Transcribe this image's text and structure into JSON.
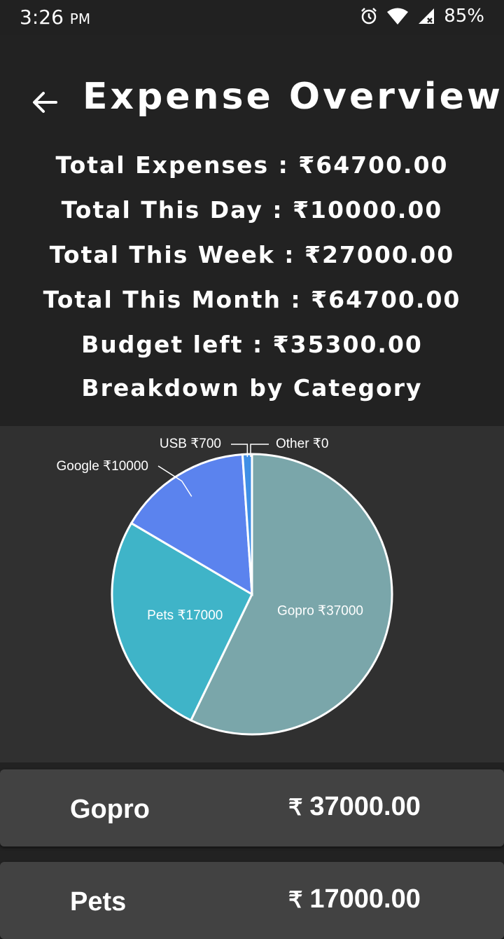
{
  "status": {
    "time": "3:26",
    "ampm": "PM",
    "battery": "85%",
    "icons": [
      "alarm-icon",
      "wifi-icon",
      "signal-icon"
    ]
  },
  "header": {
    "title": "Expense Overview",
    "back_icon": "arrow-left-icon"
  },
  "stats": {
    "total_expenses": "Total Expenses : ₹64700.00",
    "total_day": "Total This Day : ₹10000.00",
    "total_week": "Total This Week : ₹27000.00",
    "total_month": "Total This Month : ₹64700.00",
    "budget_left": "Budget left : ₹35300.00",
    "breakdown_heading": "Breakdown by Category"
  },
  "chart_data": {
    "type": "pie",
    "slices": [
      {
        "name": "Gopro",
        "value": 37000,
        "label": "Gopro ₹37000",
        "color": "#7aa6aa"
      },
      {
        "name": "Pets",
        "value": 17000,
        "label": "Pets ₹17000",
        "color": "#3fb4c8"
      },
      {
        "name": "Google",
        "value": 10000,
        "label": "Google ₹10000",
        "color": "#5b83ee"
      },
      {
        "name": "USB",
        "value": 700,
        "label": "USB ₹700",
        "color": "#3f8fe6"
      },
      {
        "name": "Other",
        "value": 0,
        "label": "Other ₹0",
        "color": "#3f8fe6"
      }
    ]
  },
  "cards": [
    {
      "name": "Gopro",
      "symbol": "₹",
      "amount": "37000.00"
    },
    {
      "name": "Pets",
      "symbol": "₹",
      "amount": "17000.00"
    }
  ],
  "colors": {
    "background": "#222222",
    "chart_background": "#303030",
    "card_background": "#424242"
  }
}
